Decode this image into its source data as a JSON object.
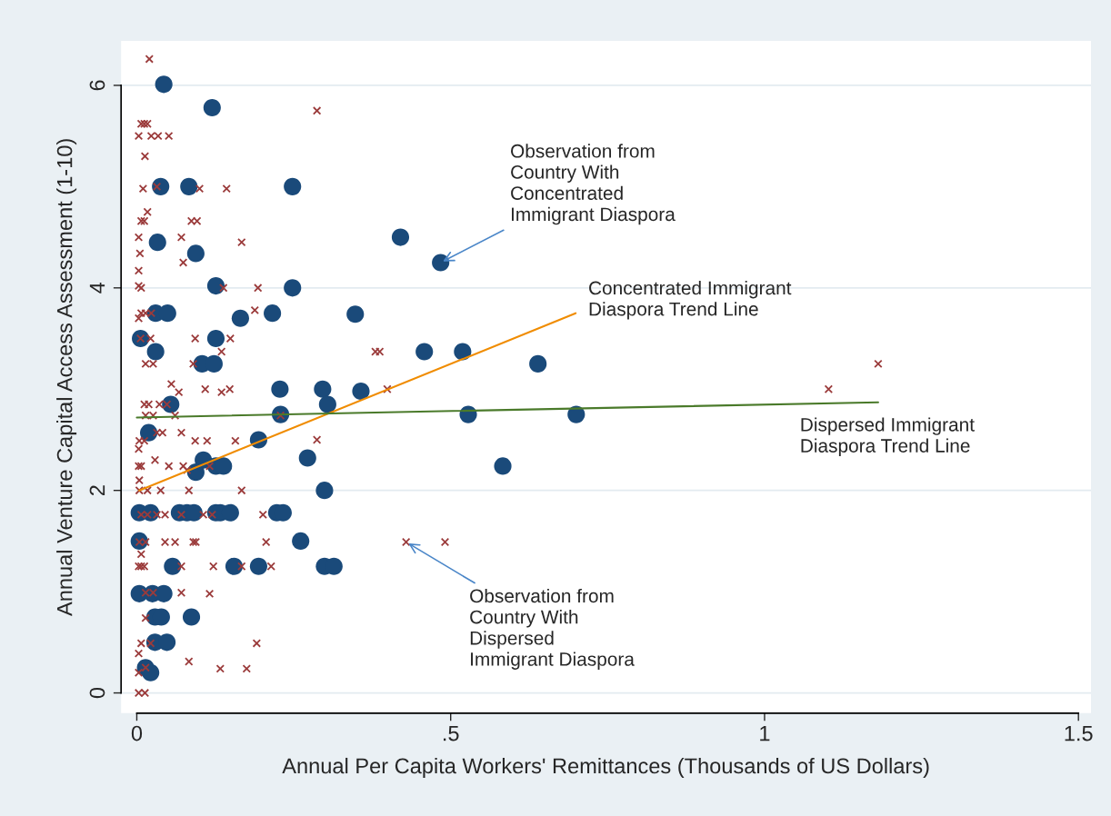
{
  "chart_data": {
    "type": "scatter",
    "xlabel": "Annual Per Capita Workers' Remittances (Thousands of US Dollars)",
    "ylabel": "Annual Venture Capital Access Assessment (1-10)",
    "xlim": [
      -0.025,
      1.52
    ],
    "ylim": [
      -0.2,
      6.44
    ],
    "xticks": [
      0,
      {
        "value": 0.5,
        "label": ".5"
      },
      1,
      {
        "value": 1.5,
        "label": "1.5"
      }
    ],
    "yticks": [
      0,
      2,
      4,
      6
    ],
    "grid": "y",
    "legend": false,
    "series": [
      {
        "marker": "circle",
        "color": "#1a4a7a",
        "x": [
          0.043,
          0.12,
          0.038,
          0.083,
          0.248,
          0.033,
          0.094,
          0.42,
          0.484,
          0.126,
          0.248,
          0.03,
          0.049,
          0.165,
          0.216,
          0.348,
          0.006,
          0.126,
          0.03,
          0.104,
          0.123,
          0.458,
          0.519,
          0.639,
          0.054,
          0.228,
          0.296,
          0.357,
          0.304,
          0.229,
          0.528,
          0.7,
          0.019,
          0.194,
          0.272,
          0.583,
          0.106,
          0.094,
          0.126,
          0.138,
          0.299,
          0.004,
          0.022,
          0.068,
          0.08,
          0.091,
          0.126,
          0.133,
          0.149,
          0.223,
          0.233,
          0.004,
          0.261,
          0.057,
          0.155,
          0.194,
          0.299,
          0.314,
          0.004,
          0.025,
          0.043,
          0.029,
          0.039,
          0.087,
          0.029,
          0.048,
          0.014,
          0.022
        ],
        "values": [
          6.01,
          5.78,
          5.0,
          5.0,
          5.0,
          4.45,
          4.34,
          4.5,
          4.25,
          4.02,
          4.0,
          3.75,
          3.75,
          3.7,
          3.75,
          3.74,
          3.5,
          3.5,
          3.37,
          3.25,
          3.25,
          3.37,
          3.37,
          3.25,
          2.85,
          3.0,
          3.0,
          2.98,
          2.85,
          2.75,
          2.75,
          2.75,
          2.57,
          2.5,
          2.32,
          2.24,
          2.3,
          2.18,
          2.24,
          2.24,
          2.0,
          1.78,
          1.78,
          1.78,
          1.78,
          1.78,
          1.78,
          1.78,
          1.78,
          1.78,
          1.78,
          1.5,
          1.5,
          1.25,
          1.25,
          1.25,
          1.25,
          1.25,
          0.98,
          0.98,
          0.98,
          0.75,
          0.75,
          0.75,
          0.5,
          0.5,
          0.25,
          0.2
        ]
      },
      {
        "marker": "cross",
        "color": "#9b3b3b",
        "x": [
          0.02,
          0.007,
          0.012,
          0.017,
          0.003,
          0.023,
          0.034,
          0.051,
          0.013,
          0.01,
          0.032,
          0.1,
          0.143,
          0.017,
          0.007,
          0.012,
          0.087,
          0.096,
          0.003,
          0.071,
          0.167,
          0.005,
          0.074,
          0.003,
          0.003,
          0.007,
          0.138,
          0.193,
          0.188,
          0.003,
          0.007,
          0.014,
          0.023,
          0.006,
          0.022,
          0.093,
          0.149,
          0.135,
          0.014,
          0.026,
          0.09,
          0.055,
          0.067,
          0.109,
          0.135,
          0.148,
          0.012,
          0.019,
          0.036,
          0.048,
          0.014,
          0.026,
          0.061,
          0.229,
          0.032,
          0.041,
          0.071,
          0.004,
          0.012,
          0.093,
          0.112,
          0.157,
          0.003,
          0.029,
          0.003,
          0.007,
          0.051,
          0.074,
          0.116,
          0.004,
          0.08,
          0.004,
          0.017,
          0.038,
          0.083,
          0.167,
          0.007,
          0.017,
          0.032,
          0.045,
          0.071,
          0.106,
          0.12,
          0.201,
          0.004,
          0.014,
          0.045,
          0.061,
          0.09,
          0.094,
          0.206,
          0.007,
          0.003,
          0.007,
          0.012,
          0.071,
          0.122,
          0.167,
          0.214,
          0.014,
          0.026,
          0.071,
          0.116,
          0.014,
          0.007,
          0.022,
          0.191,
          0.003,
          0.083,
          0.003,
          0.014,
          0.133,
          0.175,
          0.003,
          0.013,
          0.287,
          0.38,
          0.387,
          0.399,
          0.287,
          0.429,
          0.491,
          1.102,
          1.181
        ],
        "values": [
          6.26,
          5.62,
          5.62,
          5.62,
          5.5,
          5.5,
          5.5,
          5.5,
          5.3,
          4.98,
          5.0,
          4.98,
          4.98,
          4.75,
          4.66,
          4.66,
          4.66,
          4.66,
          4.5,
          4.5,
          4.45,
          4.34,
          4.25,
          4.17,
          4.02,
          4.0,
          4.0,
          4.0,
          3.78,
          3.7,
          3.75,
          3.75,
          3.75,
          3.5,
          3.5,
          3.5,
          3.5,
          3.37,
          3.25,
          3.25,
          3.25,
          3.05,
          2.97,
          3.0,
          2.97,
          3.0,
          2.85,
          2.85,
          2.85,
          2.85,
          2.74,
          2.74,
          2.74,
          2.74,
          2.57,
          2.57,
          2.57,
          2.49,
          2.49,
          2.49,
          2.49,
          2.49,
          2.41,
          2.3,
          2.24,
          2.24,
          2.24,
          2.24,
          2.24,
          2.1,
          2.2,
          2.0,
          2.0,
          2.0,
          2.0,
          2.0,
          1.76,
          1.76,
          1.76,
          1.76,
          1.76,
          1.76,
          1.76,
          1.76,
          1.49,
          1.49,
          1.49,
          1.49,
          1.49,
          1.49,
          1.49,
          1.37,
          1.25,
          1.25,
          1.25,
          1.25,
          1.25,
          1.25,
          1.25,
          0.99,
          0.99,
          0.99,
          0.98,
          0.74,
          0.49,
          0.49,
          0.49,
          0.39,
          0.31,
          0.2,
          0.25,
          0.24,
          0.24,
          0,
          0,
          5.75,
          3.37,
          3.37,
          3.0,
          2.5,
          1.49,
          1.49,
          3.0,
          3.25
        ]
      },
      {
        "type": "line",
        "name": "Concentrated Immigrant\nDiaspora Trend Line",
        "color": "#f08c00",
        "x": [
          0.004,
          0.699
        ],
        "values": [
          2.0,
          3.75
        ]
      },
      {
        "type": "line",
        "name": "Dispersed Immigrant\nDiaspora Trend Line",
        "color": "#4a7a2a",
        "x": [
          0.0,
          1.181
        ],
        "values": [
          2.72,
          2.87
        ]
      }
    ],
    "annotations": [
      {
        "text": "Observation from\nCountry With\nConcentrated\nImmigrant Diaspora",
        "x": 0.484,
        "y": 4.25
      },
      {
        "text": "Observation from\nCountry With\nDispersed\nImmigrant Diaspora",
        "x": 0.429,
        "y": 1.49
      }
    ]
  }
}
